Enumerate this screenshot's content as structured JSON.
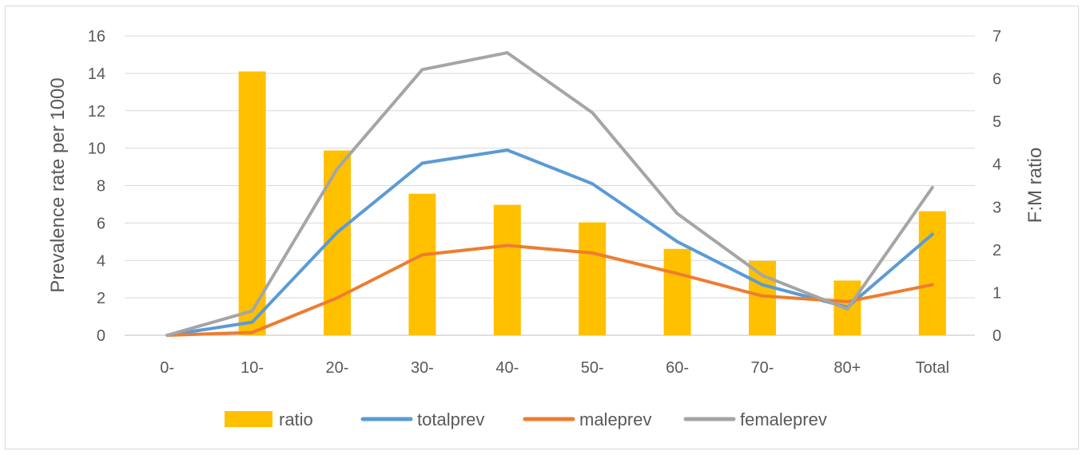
{
  "chart_data": {
    "type": "bar+line",
    "title": "",
    "categories": [
      "0-",
      "10-",
      "20-",
      "30-",
      "40-",
      "50-",
      "60-",
      "70-",
      "80+",
      "Total"
    ],
    "ylabel_left": "Prevalence rate per 1000",
    "ylabel_right": "F:M ratio",
    "ylim_left": [
      0,
      16
    ],
    "yticks_left": [
      0,
      2,
      4,
      6,
      8,
      10,
      12,
      14,
      16
    ],
    "ylim_right": [
      0,
      7
    ],
    "yticks_right": [
      0,
      1,
      2,
      3,
      4,
      5,
      6,
      7
    ],
    "grid": true,
    "legend_position": "bottom",
    "bar_series": {
      "name": "ratio",
      "axis": "right",
      "color": "#FFC000",
      "values": [
        null,
        6.17,
        4.32,
        3.31,
        3.05,
        2.64,
        2.02,
        1.74,
        1.28,
        2.9
      ]
    },
    "line_series": [
      {
        "name": "totalprev",
        "axis": "left",
        "color": "#5B9BD5",
        "values": [
          0.0,
          0.7,
          5.5,
          9.2,
          9.9,
          8.1,
          5.0,
          2.7,
          1.5,
          5.4
        ]
      },
      {
        "name": "maleprev",
        "axis": "left",
        "color": "#ED7D31",
        "values": [
          0.0,
          0.15,
          2.0,
          4.3,
          4.8,
          4.4,
          3.3,
          2.1,
          1.8,
          2.7
        ]
      },
      {
        "name": "femaleprev",
        "axis": "left",
        "color": "#A5A5A5",
        "values": [
          0.0,
          1.3,
          8.9,
          14.2,
          15.1,
          11.9,
          6.5,
          3.2,
          1.4,
          7.9
        ]
      }
    ]
  }
}
